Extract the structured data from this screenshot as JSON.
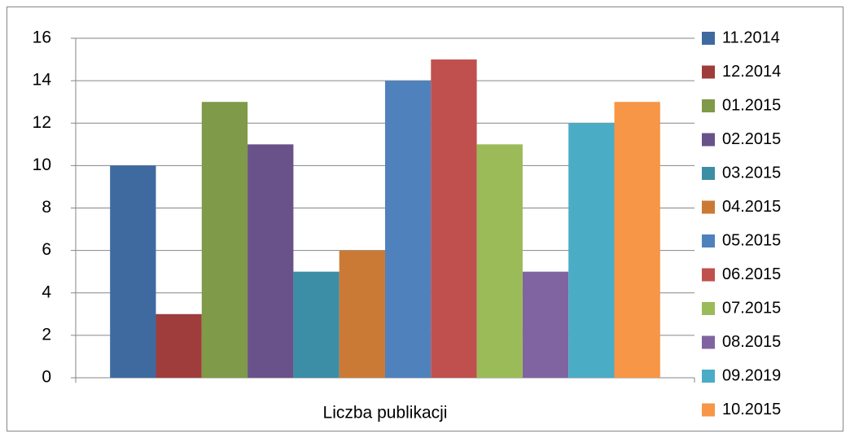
{
  "chart_data": {
    "type": "bar",
    "categories": [
      "Liczba publikacji"
    ],
    "series": [
      {
        "name": "11.2014",
        "color": "#3f6aa0",
        "values": [
          10
        ]
      },
      {
        "name": "12.2014",
        "color": "#9e3d3b",
        "values": [
          3
        ]
      },
      {
        "name": "01.2015",
        "color": "#7f9a48",
        "values": [
          13
        ]
      },
      {
        "name": "02.2015",
        "color": "#69528a",
        "values": [
          11
        ]
      },
      {
        "name": "03.2015",
        "color": "#3b8ea5",
        "values": [
          5
        ]
      },
      {
        "name": "04.2015",
        "color": "#cb7a35",
        "values": [
          6
        ]
      },
      {
        "name": "05.2015",
        "color": "#4f81bd",
        "values": [
          14
        ]
      },
      {
        "name": "06.2015",
        "color": "#c0504d",
        "values": [
          15
        ]
      },
      {
        "name": "07.2015",
        "color": "#9bbb59",
        "values": [
          11
        ]
      },
      {
        "name": "08.2015",
        "color": "#8064a2",
        "values": [
          5
        ]
      },
      {
        "name": "09.2019",
        "color": "#4bacc6",
        "values": [
          12
        ]
      },
      {
        "name": "10.2015",
        "color": "#f79646",
        "values": [
          13
        ]
      }
    ],
    "ylim": [
      0,
      16
    ],
    "yticks": [
      0,
      2,
      4,
      6,
      8,
      10,
      12,
      14,
      16
    ],
    "grid": true,
    "legend": "right"
  }
}
